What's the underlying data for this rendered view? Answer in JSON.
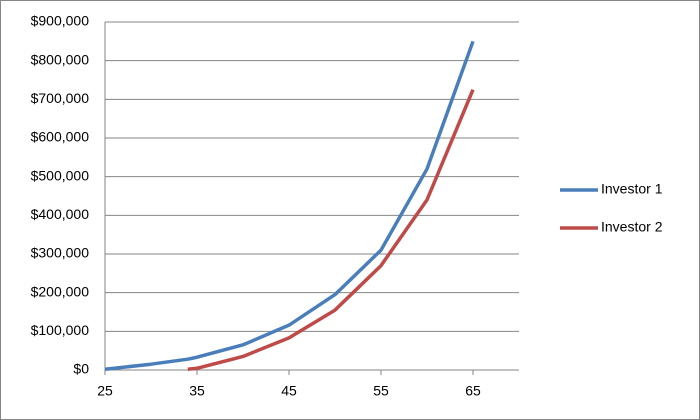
{
  "chart_data": {
    "type": "line",
    "x": [
      25,
      30,
      34,
      35,
      40,
      45,
      50,
      55,
      60,
      65
    ],
    "series": [
      {
        "name": "Investor 1",
        "color": "#4a7ebb",
        "values": [
          2000,
          15000,
          28000,
          33000,
          65000,
          116000,
          195000,
          310000,
          520000,
          850000
        ]
      },
      {
        "name": "Investor 2",
        "color": "#be4b48",
        "values": [
          null,
          null,
          2000,
          4500,
          35000,
          83000,
          155000,
          270000,
          440000,
          725000
        ]
      }
    ],
    "xlim": [
      25,
      70
    ],
    "xticks": [
      25,
      35,
      45,
      55,
      65
    ],
    "ylim": [
      0,
      900000
    ],
    "yticks": [
      {
        "value": 0,
        "label": "$0"
      },
      {
        "value": 100000,
        "label": "$100,000"
      },
      {
        "value": 200000,
        "label": "$200,000"
      },
      {
        "value": 300000,
        "label": "$300,000"
      },
      {
        "value": 400000,
        "label": "$400,000"
      },
      {
        "value": 500000,
        "label": "$500,000"
      },
      {
        "value": 600000,
        "label": "$600,000"
      },
      {
        "value": 700000,
        "label": "$700,000"
      },
      {
        "value": 800000,
        "label": "$800,000"
      },
      {
        "value": 900000,
        "label": "$900,000"
      }
    ],
    "grid": true,
    "legend": "right"
  }
}
